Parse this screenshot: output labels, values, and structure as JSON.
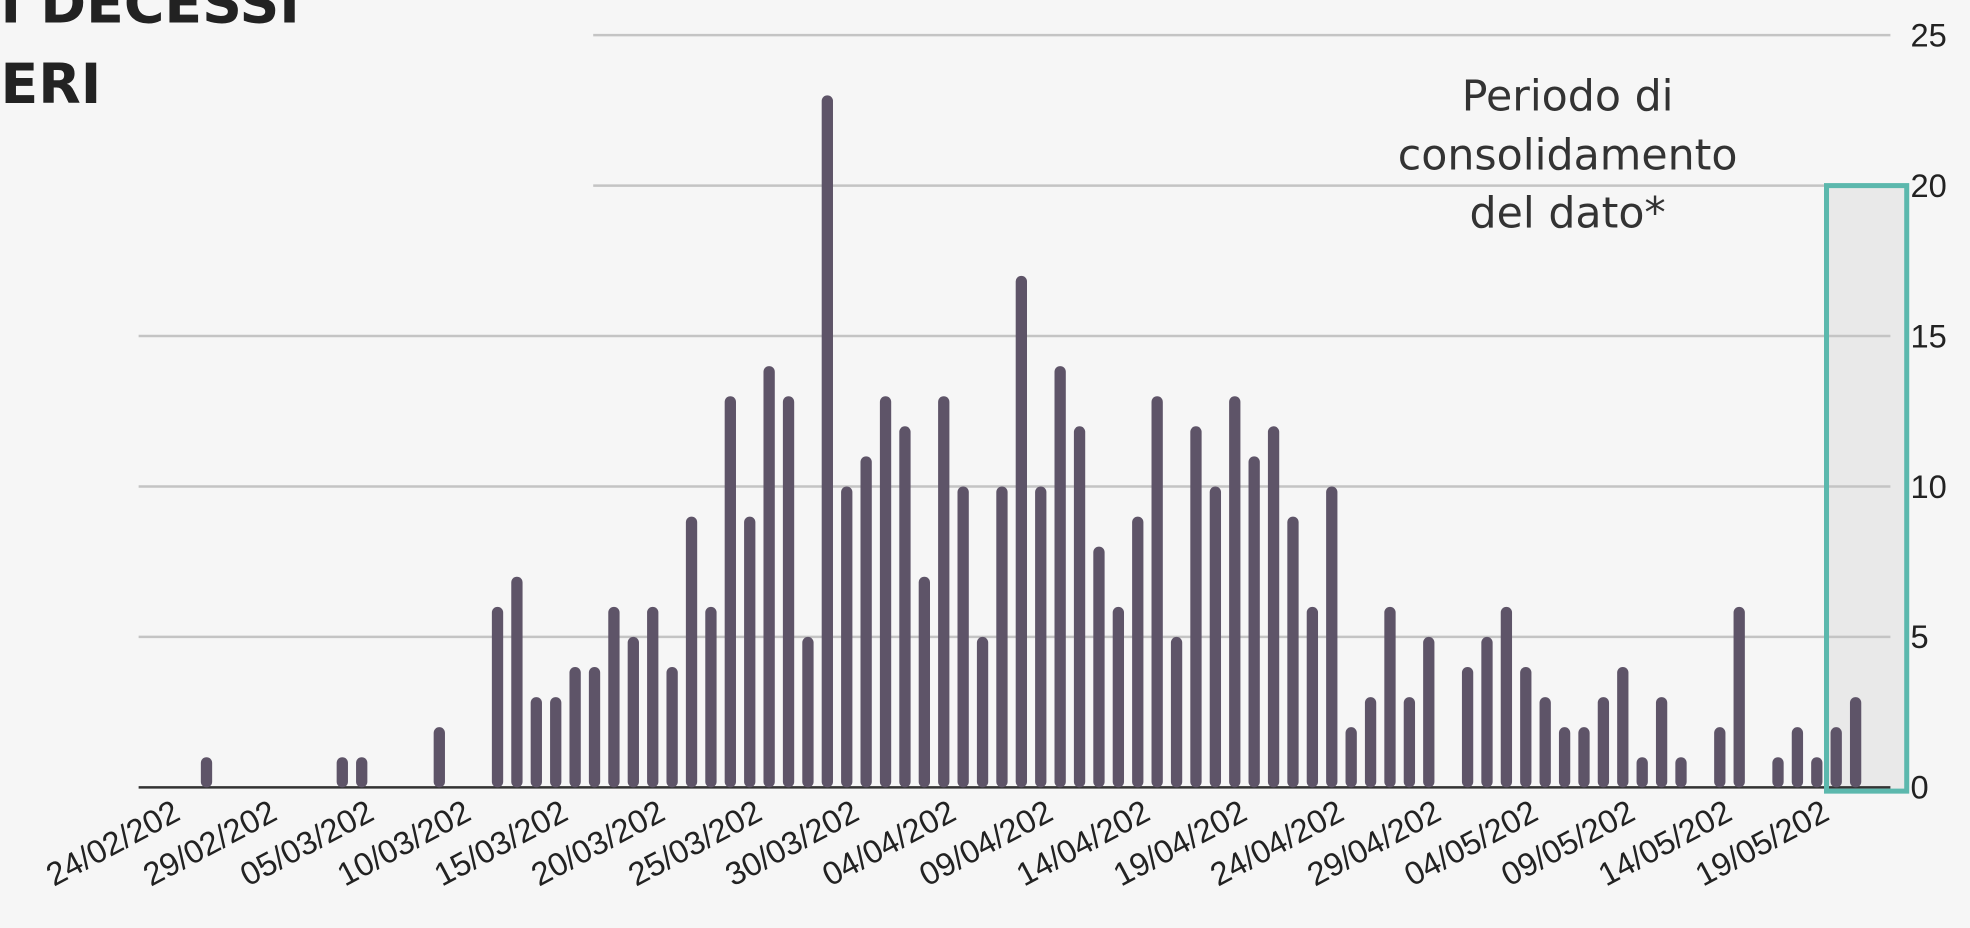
{
  "chart_data": {
    "type": "bar",
    "title_lines": [
      "I DECESSI",
      "ERI"
    ],
    "annotation_lines": [
      "Periodo di",
      "consolidamento",
      "del dato*"
    ],
    "categories": [
      "24/02/202",
      null,
      null,
      null,
      null,
      "29/02/202",
      null,
      null,
      null,
      null,
      "05/03/202",
      null,
      null,
      null,
      null,
      "10/03/202",
      null,
      null,
      null,
      null,
      "15/03/202",
      null,
      null,
      null,
      null,
      "20/03/202",
      null,
      null,
      null,
      null,
      "25/03/202",
      null,
      null,
      null,
      null,
      "30/03/202",
      null,
      null,
      null,
      null,
      "04/04/202",
      null,
      null,
      null,
      null,
      "09/04/202",
      null,
      null,
      null,
      null,
      "14/04/202",
      null,
      null,
      null,
      null,
      "19/04/202",
      null,
      null,
      null,
      null,
      "24/04/202",
      null,
      null,
      null,
      null,
      "29/04/202",
      null,
      null,
      null,
      null,
      "04/05/202",
      null,
      null,
      null,
      null,
      "09/05/202",
      null,
      null,
      null,
      null,
      "14/05/202",
      null,
      null,
      null,
      null,
      "19/05/202",
      null
    ],
    "values": [
      0,
      1,
      0,
      0,
      0,
      0,
      0,
      0,
      1,
      1,
      0,
      0,
      0,
      2,
      0,
      0,
      6,
      7,
      3,
      3,
      4,
      4,
      6,
      5,
      6,
      4,
      9,
      6,
      13,
      9,
      14,
      13,
      5,
      23,
      10,
      11,
      13,
      12,
      7,
      13,
      10,
      5,
      10,
      17,
      10,
      14,
      12,
      8,
      6,
      9,
      13,
      5,
      12,
      10,
      13,
      11,
      12,
      9,
      6,
      10,
      2,
      3,
      6,
      3,
      5,
      0,
      4,
      5,
      6,
      4,
      3,
      2,
      2,
      3,
      4,
      1,
      3,
      1,
      0,
      2,
      6,
      0,
      1,
      2,
      1,
      2,
      3
    ],
    "color": "#5e5468",
    "ylim": [
      0,
      25
    ],
    "yticks": [
      0,
      5,
      10,
      15,
      20,
      25
    ],
    "grid": true,
    "highlight_color": "#5cb8ad"
  }
}
